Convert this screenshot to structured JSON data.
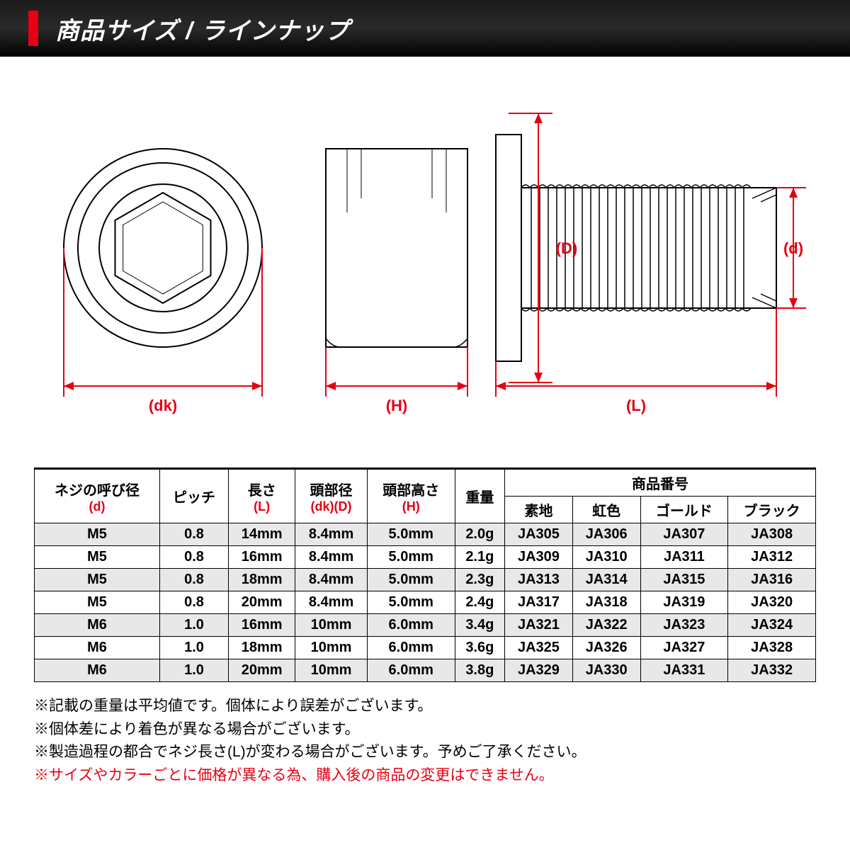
{
  "header": {
    "title": "商品サイズ / ラインナップ",
    "accent_color": "#e60012",
    "bg_gradient": [
      "#1a1a1a",
      "#000000"
    ],
    "text_color": "#ffffff",
    "title_fontsize": 34
  },
  "diagram": {
    "stroke_color": "#000000",
    "accent_color": "#e60012",
    "labels": {
      "dk": "(dk)",
      "H": "(H)",
      "L": "(L)",
      "D": "(D)",
      "d": "(d)"
    }
  },
  "table": {
    "border_color": "#000000",
    "alt_row_bg": "#e8e8e8",
    "font_size": 20,
    "columns_top": [
      {
        "label": "ネジの呼び径",
        "sub": "(d)",
        "rowspan": 2
      },
      {
        "label": "ピッチ",
        "rowspan": 2
      },
      {
        "label": "長さ",
        "sub": "(L)",
        "rowspan": 2
      },
      {
        "label": "頭部径",
        "sub": "(dk)(D)",
        "rowspan": 2
      },
      {
        "label": "頭部高さ",
        "sub": "(H)",
        "rowspan": 2
      },
      {
        "label": "重量",
        "rowspan": 2
      },
      {
        "label": "商品番号",
        "colspan": 4
      }
    ],
    "columns_sub": [
      "素地",
      "虹色",
      "ゴールド",
      "ブラック"
    ],
    "rows": [
      [
        "M5",
        "0.8",
        "14mm",
        "8.4mm",
        "5.0mm",
        "2.0g",
        "JA305",
        "JA306",
        "JA307",
        "JA308"
      ],
      [
        "M5",
        "0.8",
        "16mm",
        "8.4mm",
        "5.0mm",
        "2.1g",
        "JA309",
        "JA310",
        "JA311",
        "JA312"
      ],
      [
        "M5",
        "0.8",
        "18mm",
        "8.4mm",
        "5.0mm",
        "2.3g",
        "JA313",
        "JA314",
        "JA315",
        "JA316"
      ],
      [
        "M5",
        "0.8",
        "20mm",
        "8.4mm",
        "5.0mm",
        "2.4g",
        "JA317",
        "JA318",
        "JA319",
        "JA320"
      ],
      [
        "M6",
        "1.0",
        "16mm",
        "10mm",
        "6.0mm",
        "3.4g",
        "JA321",
        "JA322",
        "JA323",
        "JA324"
      ],
      [
        "M6",
        "1.0",
        "18mm",
        "10mm",
        "6.0mm",
        "3.6g",
        "JA325",
        "JA326",
        "JA327",
        "JA328"
      ],
      [
        "M6",
        "1.0",
        "20mm",
        "10mm",
        "6.0mm",
        "3.8g",
        "JA329",
        "JA330",
        "JA331",
        "JA332"
      ]
    ]
  },
  "notes": {
    "lines": [
      {
        "text": "※記載の重量は平均値です。個体により誤差がございます。",
        "red": false
      },
      {
        "text": "※個体差により着色が異なる場合がございます。",
        "red": false
      },
      {
        "text": "※製造過程の都合でネジ長さ(L)が変わる場合がございます。予めご了承ください。",
        "red": false
      },
      {
        "text": "※サイズやカラーごとに価格が異なる為、購入後の商品の変更はできません。",
        "red": true
      }
    ],
    "font_size": 21,
    "red_color": "#e60012"
  }
}
